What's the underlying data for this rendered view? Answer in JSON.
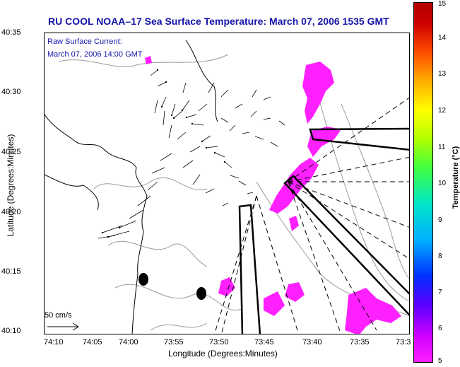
{
  "title": "RU COOL  NOAA–17  Sea Surface Temperature:  March 07, 2006 1535 GMT",
  "annotation": {
    "line1": "Raw Surface Current:",
    "line2": "March 07, 2006 14:00 GMT"
  },
  "scale_label": "50 cm/s",
  "axes": {
    "x_title": "Longitude (Degrees:Minutes)",
    "y_title": "Latitude (Degrees:Minutes)",
    "x_ticks": [
      "74:10",
      "74:05",
      "74:00",
      "73:55",
      "73:50",
      "73:45",
      "73:40",
      "73:35",
      "73:3"
    ],
    "y_ticks": [
      "40:35",
      "40:30",
      "40:25",
      "40:20",
      "40:15",
      "40:10"
    ]
  },
  "colorbar": {
    "title": "Temperature (°C)",
    "ticks": [
      "15",
      "14",
      "13",
      "12",
      "11",
      "10",
      "9",
      "8",
      "7",
      "6",
      "5"
    ],
    "min": 5,
    "max": 15
  },
  "colors": {
    "title": "#1414a8",
    "sst_patch": "#ff20ff",
    "land_contour": "#000000",
    "bathymetry": "#9a9a9a"
  }
}
